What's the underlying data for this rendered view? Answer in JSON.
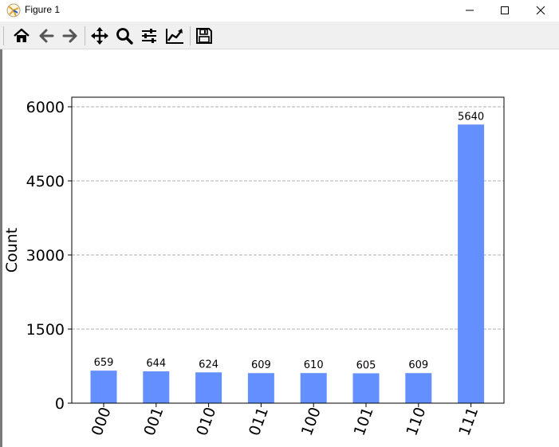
{
  "window": {
    "title": "Figure 1",
    "controls": [
      "minimize",
      "maximize",
      "close"
    ]
  },
  "toolbar": {
    "buttons": [
      {
        "name": "home",
        "icon": "home-icon",
        "tooltip": "Reset original view"
      },
      {
        "name": "back",
        "icon": "arrow-left-icon",
        "tooltip": "Back to previous view"
      },
      {
        "name": "forward",
        "icon": "arrow-right-icon",
        "tooltip": "Forward to next view"
      },
      {
        "name": "pan",
        "icon": "move-icon",
        "tooltip": "Pan axes"
      },
      {
        "name": "zoom",
        "icon": "magnifier-icon",
        "tooltip": "Zoom to rectangle"
      },
      {
        "name": "subplots",
        "icon": "sliders-icon",
        "tooltip": "Configure subplots"
      },
      {
        "name": "edit-axes",
        "icon": "line-chart-icon",
        "tooltip": "Edit axis"
      },
      {
        "name": "save",
        "icon": "floppy-disk-icon",
        "tooltip": "Save the figure"
      }
    ]
  },
  "colors": {
    "bar": "#648fff",
    "grid": "#b0b0b0",
    "axis": "#000000"
  },
  "chart_data": {
    "type": "bar",
    "categories": [
      "000",
      "001",
      "010",
      "011",
      "100",
      "101",
      "110",
      "111"
    ],
    "values": [
      659,
      644,
      624,
      609,
      610,
      605,
      609,
      5640
    ],
    "data_labels": [
      "659",
      "644",
      "624",
      "609",
      "610",
      "605",
      "609",
      "5640"
    ],
    "title": "",
    "xlabel": "",
    "ylabel": "Count",
    "ylim": [
      0,
      6000
    ],
    "yticks": [
      0,
      1500,
      3000,
      4500,
      6000
    ],
    "ytick_labels": [
      "0",
      "1500",
      "3000",
      "4500",
      "6000"
    ],
    "grid": "horizontal dashed",
    "xtick_rotation": "70 degrees"
  }
}
